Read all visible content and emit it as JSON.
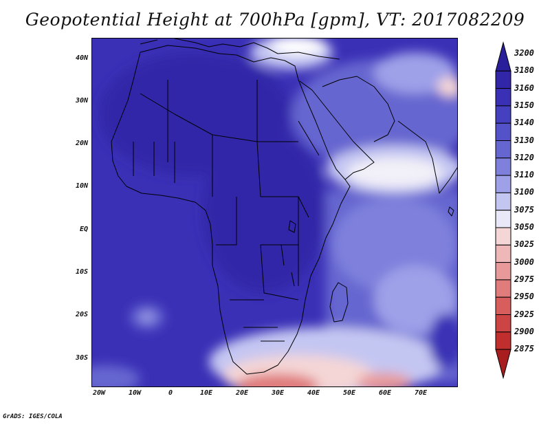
{
  "title": "Geopotential Height at 700hPa [gpm], VT: 2017082209",
  "footer": "GrADS: IGES/COLA",
  "map": {
    "lat_labels": [
      "40N",
      "30N",
      "20N",
      "10N",
      "EQ",
      "10S",
      "20S",
      "30S"
    ],
    "lon_labels": [
      "20W",
      "10W",
      "0",
      "10E",
      "20E",
      "30E",
      "40E",
      "50E",
      "60E",
      "70E"
    ]
  },
  "colorbar": {
    "levels": [
      "3200",
      "3180",
      "3160",
      "3150",
      "3140",
      "3130",
      "3120",
      "3110",
      "3100",
      "3075",
      "3050",
      "3025",
      "3000",
      "2975",
      "2950",
      "2925",
      "2900",
      "2875"
    ],
    "colors": [
      "#2a1f9a",
      "#3226a8",
      "#3a30b6",
      "#4540c0",
      "#5352c8",
      "#6666d0",
      "#7e80dc",
      "#9ea0e8",
      "#c4c6f2",
      "#e8e8f8",
      "#f4d6d6",
      "#efb8b8",
      "#e89a9a",
      "#e07c7c",
      "#d85e5e",
      "#cc4444",
      "#c02e2e",
      "#a81e1e"
    ]
  }
}
